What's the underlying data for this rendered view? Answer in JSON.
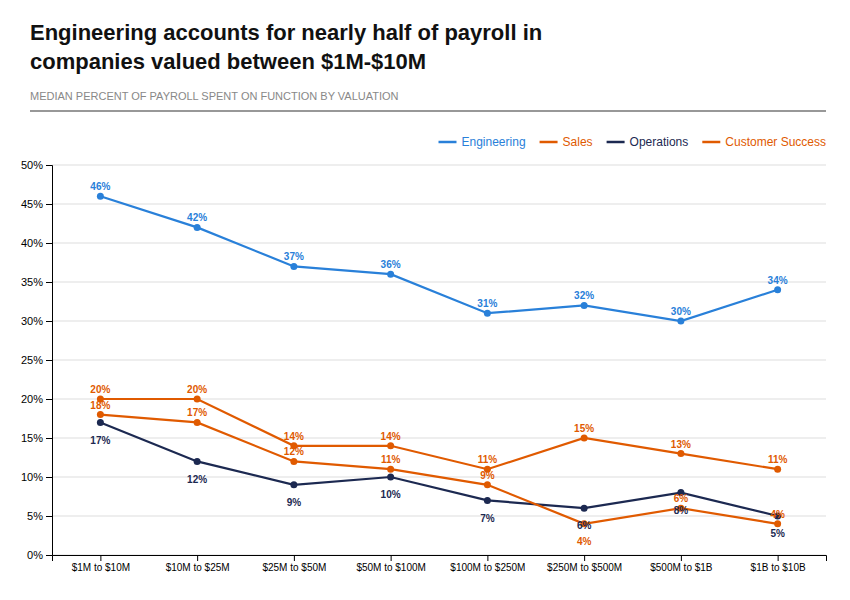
{
  "chart_data": {
    "type": "line",
    "title": [
      "Engineering accounts for nearly half of payroll in",
      "companies valued between $1M-$10M"
    ],
    "subtitle": "MEDIAN PERCENT OF PAYROLL SPENT ON FUNCTION BY VALUATION",
    "categories": [
      "$1M to $10M",
      "$10M to $25M",
      "$25M to $50M",
      "$50M to $100M",
      "$100M to $250M",
      "$250M to $500M",
      "$500M to $1B",
      "$1B to $10B"
    ],
    "series": [
      {
        "name": "Engineering",
        "color": "#2980d9",
        "marker": "circle",
        "values": [
          46,
          42,
          37,
          36,
          31,
          32,
          30,
          34
        ],
        "value_labels": [
          "46%",
          "42%",
          "37%",
          "36%",
          "31%",
          "32%",
          "30%",
          "34%"
        ]
      },
      {
        "name": "Sales",
        "color": "#e05a00",
        "marker": "circle",
        "values": [
          20,
          20,
          14,
          14,
          11,
          15,
          13,
          11
        ],
        "value_labels": [
          "20%",
          "20%",
          "14%",
          "14%",
          "11%",
          "15%",
          "13%",
          "11%"
        ]
      },
      {
        "name": "Operations",
        "color": "#1c2951",
        "marker": "circle",
        "values": [
          17,
          12,
          9,
          10,
          7,
          6,
          8,
          5
        ],
        "value_labels": [
          "17%",
          "12%",
          "9%",
          "10%",
          "7%",
          "6%",
          "8%",
          "5%"
        ]
      },
      {
        "name": "Customer Success",
        "color": "#e05a00",
        "marker": "circle",
        "values": [
          18,
          17,
          12,
          11,
          9,
          4,
          6,
          4
        ],
        "value_labels": [
          "18%",
          "17%",
          "12%",
          "11%",
          "9%",
          "4%",
          "6%",
          "4%"
        ]
      }
    ],
    "ylim": [
      0,
      50
    ],
    "yticks": [
      {
        "value": 0,
        "label": "0%"
      },
      {
        "value": 5,
        "label": "5%"
      },
      {
        "value": 10,
        "label": "10%"
      },
      {
        "value": 15,
        "label": "15%"
      },
      {
        "value": 20,
        "label": "20%"
      },
      {
        "value": 25,
        "label": "25%"
      },
      {
        "value": 30,
        "label": "30%"
      },
      {
        "value": 35,
        "label": "35%"
      },
      {
        "value": 40,
        "label": "40%"
      },
      {
        "value": 45,
        "label": "45%"
      },
      {
        "value": 50,
        "label": "50%"
      }
    ],
    "grid": "y",
    "legend": "upper right",
    "data_labels": true
  }
}
